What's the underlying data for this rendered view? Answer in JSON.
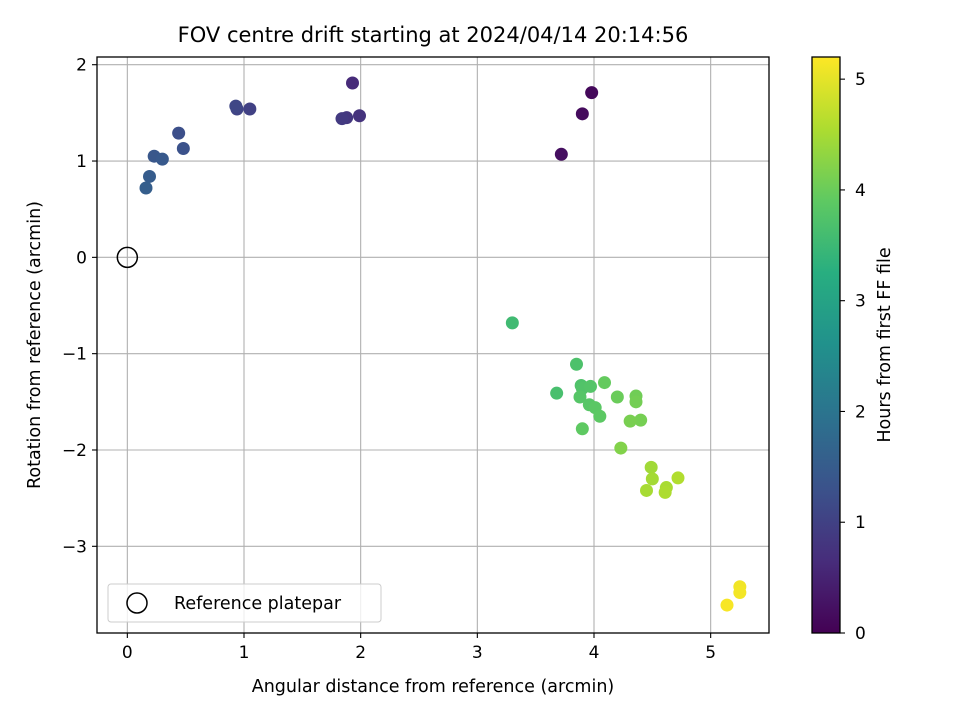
{
  "chart_data": {
    "type": "scatter",
    "title": "FOV centre drift starting at 2024/04/14 20:14:56",
    "xlabel": "Angular distance from reference (arcmin)",
    "ylabel": "Rotation from reference (arcmin)",
    "xlim": [
      -0.26,
      5.5
    ],
    "ylim": [
      -3.9,
      2.08
    ],
    "xticks": [
      "0",
      "1",
      "2",
      "3",
      "4",
      "5"
    ],
    "xtick_values": [
      0,
      1,
      2,
      3,
      4,
      5
    ],
    "yticks": [
      "2",
      "1",
      "0",
      "−1",
      "−2",
      "−3"
    ],
    "ytick_values": [
      2,
      1,
      0,
      -1,
      -2,
      -3
    ],
    "grid": true,
    "legend": {
      "placement": "lower-left",
      "entries": [
        "Reference platepar"
      ]
    },
    "reference_point": {
      "name": "Reference platepar",
      "x": 0,
      "y": 0,
      "marker": "open-circle"
    },
    "colorbar": {
      "label": "Hours from first FF file",
      "colormap": "viridis",
      "range": [
        0,
        5.2
      ],
      "ticks": [
        "0",
        "1",
        "2",
        "3",
        "4",
        "5"
      ],
      "tick_values": [
        0,
        1,
        2,
        3,
        4,
        5
      ]
    },
    "points": [
      {
        "x": 3.98,
        "y": 1.71,
        "hours": 0.1
      },
      {
        "x": 3.9,
        "y": 1.49,
        "hours": 0.15
      },
      {
        "x": 3.72,
        "y": 1.07,
        "hours": 0.2
      },
      {
        "x": 1.93,
        "y": 1.81,
        "hours": 0.62
      },
      {
        "x": 1.99,
        "y": 1.47,
        "hours": 0.75
      },
      {
        "x": 1.88,
        "y": 1.45,
        "hours": 0.82
      },
      {
        "x": 1.84,
        "y": 1.44,
        "hours": 0.88
      },
      {
        "x": 1.05,
        "y": 1.54,
        "hours": 1.0
      },
      {
        "x": 0.94,
        "y": 1.54,
        "hours": 1.05
      },
      {
        "x": 0.93,
        "y": 1.57,
        "hours": 1.1
      },
      {
        "x": 0.44,
        "y": 1.29,
        "hours": 1.25
      },
      {
        "x": 0.48,
        "y": 1.13,
        "hours": 1.3
      },
      {
        "x": 0.23,
        "y": 1.05,
        "hours": 1.4
      },
      {
        "x": 0.3,
        "y": 1.02,
        "hours": 1.45
      },
      {
        "x": 0.19,
        "y": 0.84,
        "hours": 1.5
      },
      {
        "x": 0.16,
        "y": 0.72,
        "hours": 1.55
      },
      {
        "x": 3.3,
        "y": -0.68,
        "hours": 3.55
      },
      {
        "x": 3.68,
        "y": -1.41,
        "hours": 3.65
      },
      {
        "x": 3.85,
        "y": -1.11,
        "hours": 3.7
      },
      {
        "x": 3.89,
        "y": -1.33,
        "hours": 3.72
      },
      {
        "x": 3.9,
        "y": -1.36,
        "hours": 3.75
      },
      {
        "x": 3.97,
        "y": -1.34,
        "hours": 3.78
      },
      {
        "x": 3.88,
        "y": -1.45,
        "hours": 3.8
      },
      {
        "x": 3.96,
        "y": -1.53,
        "hours": 3.82
      },
      {
        "x": 4.01,
        "y": -1.56,
        "hours": 3.85
      },
      {
        "x": 4.05,
        "y": -1.65,
        "hours": 3.88
      },
      {
        "x": 3.9,
        "y": -1.78,
        "hours": 3.9
      },
      {
        "x": 4.09,
        "y": -1.3,
        "hours": 3.95
      },
      {
        "x": 4.2,
        "y": -1.45,
        "hours": 4.0
      },
      {
        "x": 4.36,
        "y": -1.44,
        "hours": 4.05
      },
      {
        "x": 4.36,
        "y": -1.5,
        "hours": 4.08
      },
      {
        "x": 4.4,
        "y": -1.69,
        "hours": 4.1
      },
      {
        "x": 4.31,
        "y": -1.7,
        "hours": 4.12
      },
      {
        "x": 4.23,
        "y": -1.98,
        "hours": 4.2
      },
      {
        "x": 4.49,
        "y": -2.18,
        "hours": 4.45
      },
      {
        "x": 4.5,
        "y": -2.3,
        "hours": 4.48
      },
      {
        "x": 4.45,
        "y": -2.42,
        "hours": 4.5
      },
      {
        "x": 4.62,
        "y": -2.39,
        "hours": 4.52
      },
      {
        "x": 4.61,
        "y": -2.44,
        "hours": 4.55
      },
      {
        "x": 4.72,
        "y": -2.29,
        "hours": 4.58
      },
      {
        "x": 5.25,
        "y": -3.42,
        "hours": 5.1
      },
      {
        "x": 5.25,
        "y": -3.48,
        "hours": 5.12
      },
      {
        "x": 5.14,
        "y": -3.61,
        "hours": 5.15
      }
    ]
  }
}
